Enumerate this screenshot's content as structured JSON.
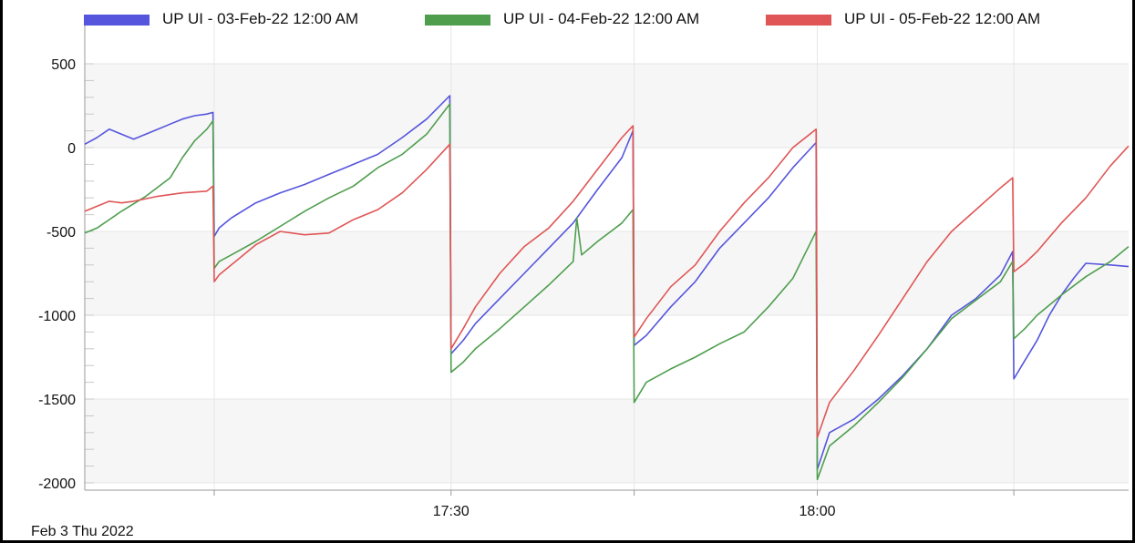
{
  "chart_data": {
    "type": "line",
    "title": "",
    "xlabel": "",
    "ylabel": "",
    "date_caption": "Feb 3 Thu 2022",
    "ylim": [
      -2000,
      500
    ],
    "yticks": [
      500,
      0,
      -500,
      -1000,
      -1500,
      -2000
    ],
    "ytick_labels": [
      "500",
      "0",
      "-500",
      "-1000",
      "-1500",
      "-2000"
    ],
    "xlim": [
      "17:00",
      "18:20"
    ],
    "xticks": [
      "17:30",
      "18:00"
    ],
    "legend_position": "top",
    "grid": true,
    "series": [
      {
        "name": "UP UI - 03-Feb-22  12:00 AM",
        "color": "#5555dd",
        "points": [
          [
            "17:00",
            20
          ],
          [
            "17:01",
            60
          ],
          [
            "17:02",
            110
          ],
          [
            "17:03",
            80
          ],
          [
            "17:04",
            50
          ],
          [
            "17:05",
            80
          ],
          [
            "17:06",
            110
          ],
          [
            "17:07",
            140
          ],
          [
            "17:08",
            170
          ],
          [
            "17:09",
            190
          ],
          [
            "17:10",
            200
          ],
          [
            "17:10.5",
            210
          ],
          [
            "17:10.6",
            -530
          ],
          [
            "17:11",
            -480
          ],
          [
            "17:12",
            -420
          ],
          [
            "17:14",
            -330
          ],
          [
            "17:16",
            -270
          ],
          [
            "17:18",
            -220
          ],
          [
            "17:20",
            -160
          ],
          [
            "17:22",
            -100
          ],
          [
            "17:24",
            -40
          ],
          [
            "17:26",
            60
          ],
          [
            "17:28",
            170
          ],
          [
            "17:29.9",
            310
          ],
          [
            "17:30",
            -1230
          ],
          [
            "17:31",
            -1150
          ],
          [
            "17:32",
            -1050
          ],
          [
            "17:34",
            -900
          ],
          [
            "17:36",
            -750
          ],
          [
            "17:38",
            -600
          ],
          [
            "17:40",
            -450
          ],
          [
            "17:42",
            -250
          ],
          [
            "17:44",
            -60
          ],
          [
            "17:44.9",
            100
          ],
          [
            "17:45",
            -1180
          ],
          [
            "17:46",
            -1120
          ],
          [
            "17:48",
            -950
          ],
          [
            "17:50",
            -800
          ],
          [
            "17:52",
            -600
          ],
          [
            "17:54",
            -450
          ],
          [
            "17:56",
            -300
          ],
          [
            "17:58",
            -120
          ],
          [
            "17:59.9",
            30
          ],
          [
            "18:00",
            -1920
          ],
          [
            "18:01",
            -1700
          ],
          [
            "18:03",
            -1620
          ],
          [
            "18:05",
            -1500
          ],
          [
            "18:07",
            -1360
          ],
          [
            "18:09",
            -1200
          ],
          [
            "18:11",
            -1000
          ],
          [
            "18:13",
            -900
          ],
          [
            "18:15",
            -760
          ],
          [
            "18:16",
            -620
          ],
          [
            "18:16.1",
            -1380
          ],
          [
            "18:17",
            -1270
          ],
          [
            "18:18",
            -1150
          ],
          [
            "18:19",
            -1000
          ],
          [
            "18:20",
            -880
          ],
          [
            "18:21",
            -780
          ],
          [
            "18:22",
            -690
          ],
          [
            "18:24",
            -700
          ],
          [
            "18:25.5",
            -710
          ]
        ]
      },
      {
        "name": "UP UI - 04-Feb-22  12:00 AM",
        "color": "#4e9e4e",
        "points": [
          [
            "17:00",
            -510
          ],
          [
            "17:01",
            -480
          ],
          [
            "17:02",
            -430
          ],
          [
            "17:03",
            -380
          ],
          [
            "17:05",
            -290
          ],
          [
            "17:07",
            -180
          ],
          [
            "17:08",
            -60
          ],
          [
            "17:09",
            40
          ],
          [
            "17:10",
            110
          ],
          [
            "17:10.5",
            160
          ],
          [
            "17:10.6",
            -720
          ],
          [
            "17:11",
            -680
          ],
          [
            "17:12",
            -640
          ],
          [
            "17:14",
            -560
          ],
          [
            "17:16",
            -470
          ],
          [
            "17:18",
            -380
          ],
          [
            "17:20",
            -300
          ],
          [
            "17:22",
            -230
          ],
          [
            "17:24",
            -120
          ],
          [
            "17:26",
            -40
          ],
          [
            "17:28",
            80
          ],
          [
            "17:29.9",
            260
          ],
          [
            "17:30",
            -1340
          ],
          [
            "17:31",
            -1280
          ],
          [
            "17:32",
            -1200
          ],
          [
            "17:34",
            -1080
          ],
          [
            "17:36",
            -950
          ],
          [
            "17:38",
            -820
          ],
          [
            "17:40",
            -680
          ],
          [
            "17:40.3",
            -420
          ],
          [
            "17:40.7",
            -640
          ],
          [
            "17:42",
            -560
          ],
          [
            "17:44",
            -450
          ],
          [
            "17:44.9",
            -370
          ],
          [
            "17:45",
            -1520
          ],
          [
            "17:46",
            -1400
          ],
          [
            "17:48",
            -1320
          ],
          [
            "17:50",
            -1250
          ],
          [
            "17:52",
            -1170
          ],
          [
            "17:54",
            -1100
          ],
          [
            "17:56",
            -950
          ],
          [
            "17:58",
            -780
          ],
          [
            "17:59.9",
            -500
          ],
          [
            "18:00",
            -1980
          ],
          [
            "18:01",
            -1780
          ],
          [
            "18:03",
            -1660
          ],
          [
            "18:05",
            -1520
          ],
          [
            "18:07",
            -1370
          ],
          [
            "18:09",
            -1200
          ],
          [
            "18:11",
            -1020
          ],
          [
            "18:13",
            -910
          ],
          [
            "18:15",
            -800
          ],
          [
            "18:16",
            -680
          ],
          [
            "18:16.1",
            -1140
          ],
          [
            "18:17",
            -1080
          ],
          [
            "18:18",
            -1000
          ],
          [
            "18:20",
            -880
          ],
          [
            "18:22",
            -770
          ],
          [
            "18:24",
            -680
          ],
          [
            "18:25.5",
            -590
          ]
        ]
      },
      {
        "name": "UP UI - 05-Feb-22  12:00 AM",
        "color": "#e05555",
        "points": [
          [
            "17:00",
            -380
          ],
          [
            "17:01",
            -350
          ],
          [
            "17:02",
            -320
          ],
          [
            "17:03",
            -330
          ],
          [
            "17:04",
            -320
          ],
          [
            "17:06",
            -290
          ],
          [
            "17:08",
            -270
          ],
          [
            "17:10",
            -260
          ],
          [
            "17:10.5",
            -230
          ],
          [
            "17:10.6",
            -800
          ],
          [
            "17:11",
            -760
          ],
          [
            "17:12",
            -700
          ],
          [
            "17:14",
            -580
          ],
          [
            "17:16",
            -500
          ],
          [
            "17:18",
            -520
          ],
          [
            "17:20",
            -510
          ],
          [
            "17:22",
            -430
          ],
          [
            "17:24",
            -370
          ],
          [
            "17:26",
            -270
          ],
          [
            "17:28",
            -130
          ],
          [
            "17:29.9",
            20
          ],
          [
            "17:30",
            -1200
          ],
          [
            "17:31",
            -1080
          ],
          [
            "17:32",
            -950
          ],
          [
            "17:34",
            -750
          ],
          [
            "17:36",
            -590
          ],
          [
            "17:38",
            -480
          ],
          [
            "17:40",
            -320
          ],
          [
            "17:42",
            -130
          ],
          [
            "17:44",
            60
          ],
          [
            "17:44.9",
            130
          ],
          [
            "17:45",
            -1130
          ],
          [
            "17:46",
            -1020
          ],
          [
            "17:48",
            -830
          ],
          [
            "17:50",
            -700
          ],
          [
            "17:52",
            -500
          ],
          [
            "17:54",
            -330
          ],
          [
            "17:56",
            -180
          ],
          [
            "17:58",
            0
          ],
          [
            "17:59.9",
            110
          ],
          [
            "18:00",
            -1730
          ],
          [
            "18:01",
            -1520
          ],
          [
            "18:03",
            -1330
          ],
          [
            "18:05",
            -1120
          ],
          [
            "18:07",
            -900
          ],
          [
            "18:09",
            -680
          ],
          [
            "18:11",
            -500
          ],
          [
            "18:13",
            -370
          ],
          [
            "18:15",
            -240
          ],
          [
            "18:16",
            -180
          ],
          [
            "18:16.1",
            -740
          ],
          [
            "18:17",
            -690
          ],
          [
            "18:18",
            -620
          ],
          [
            "18:20",
            -450
          ],
          [
            "18:22",
            -300
          ],
          [
            "18:24",
            -110
          ],
          [
            "18:25.5",
            10
          ]
        ]
      }
    ]
  }
}
